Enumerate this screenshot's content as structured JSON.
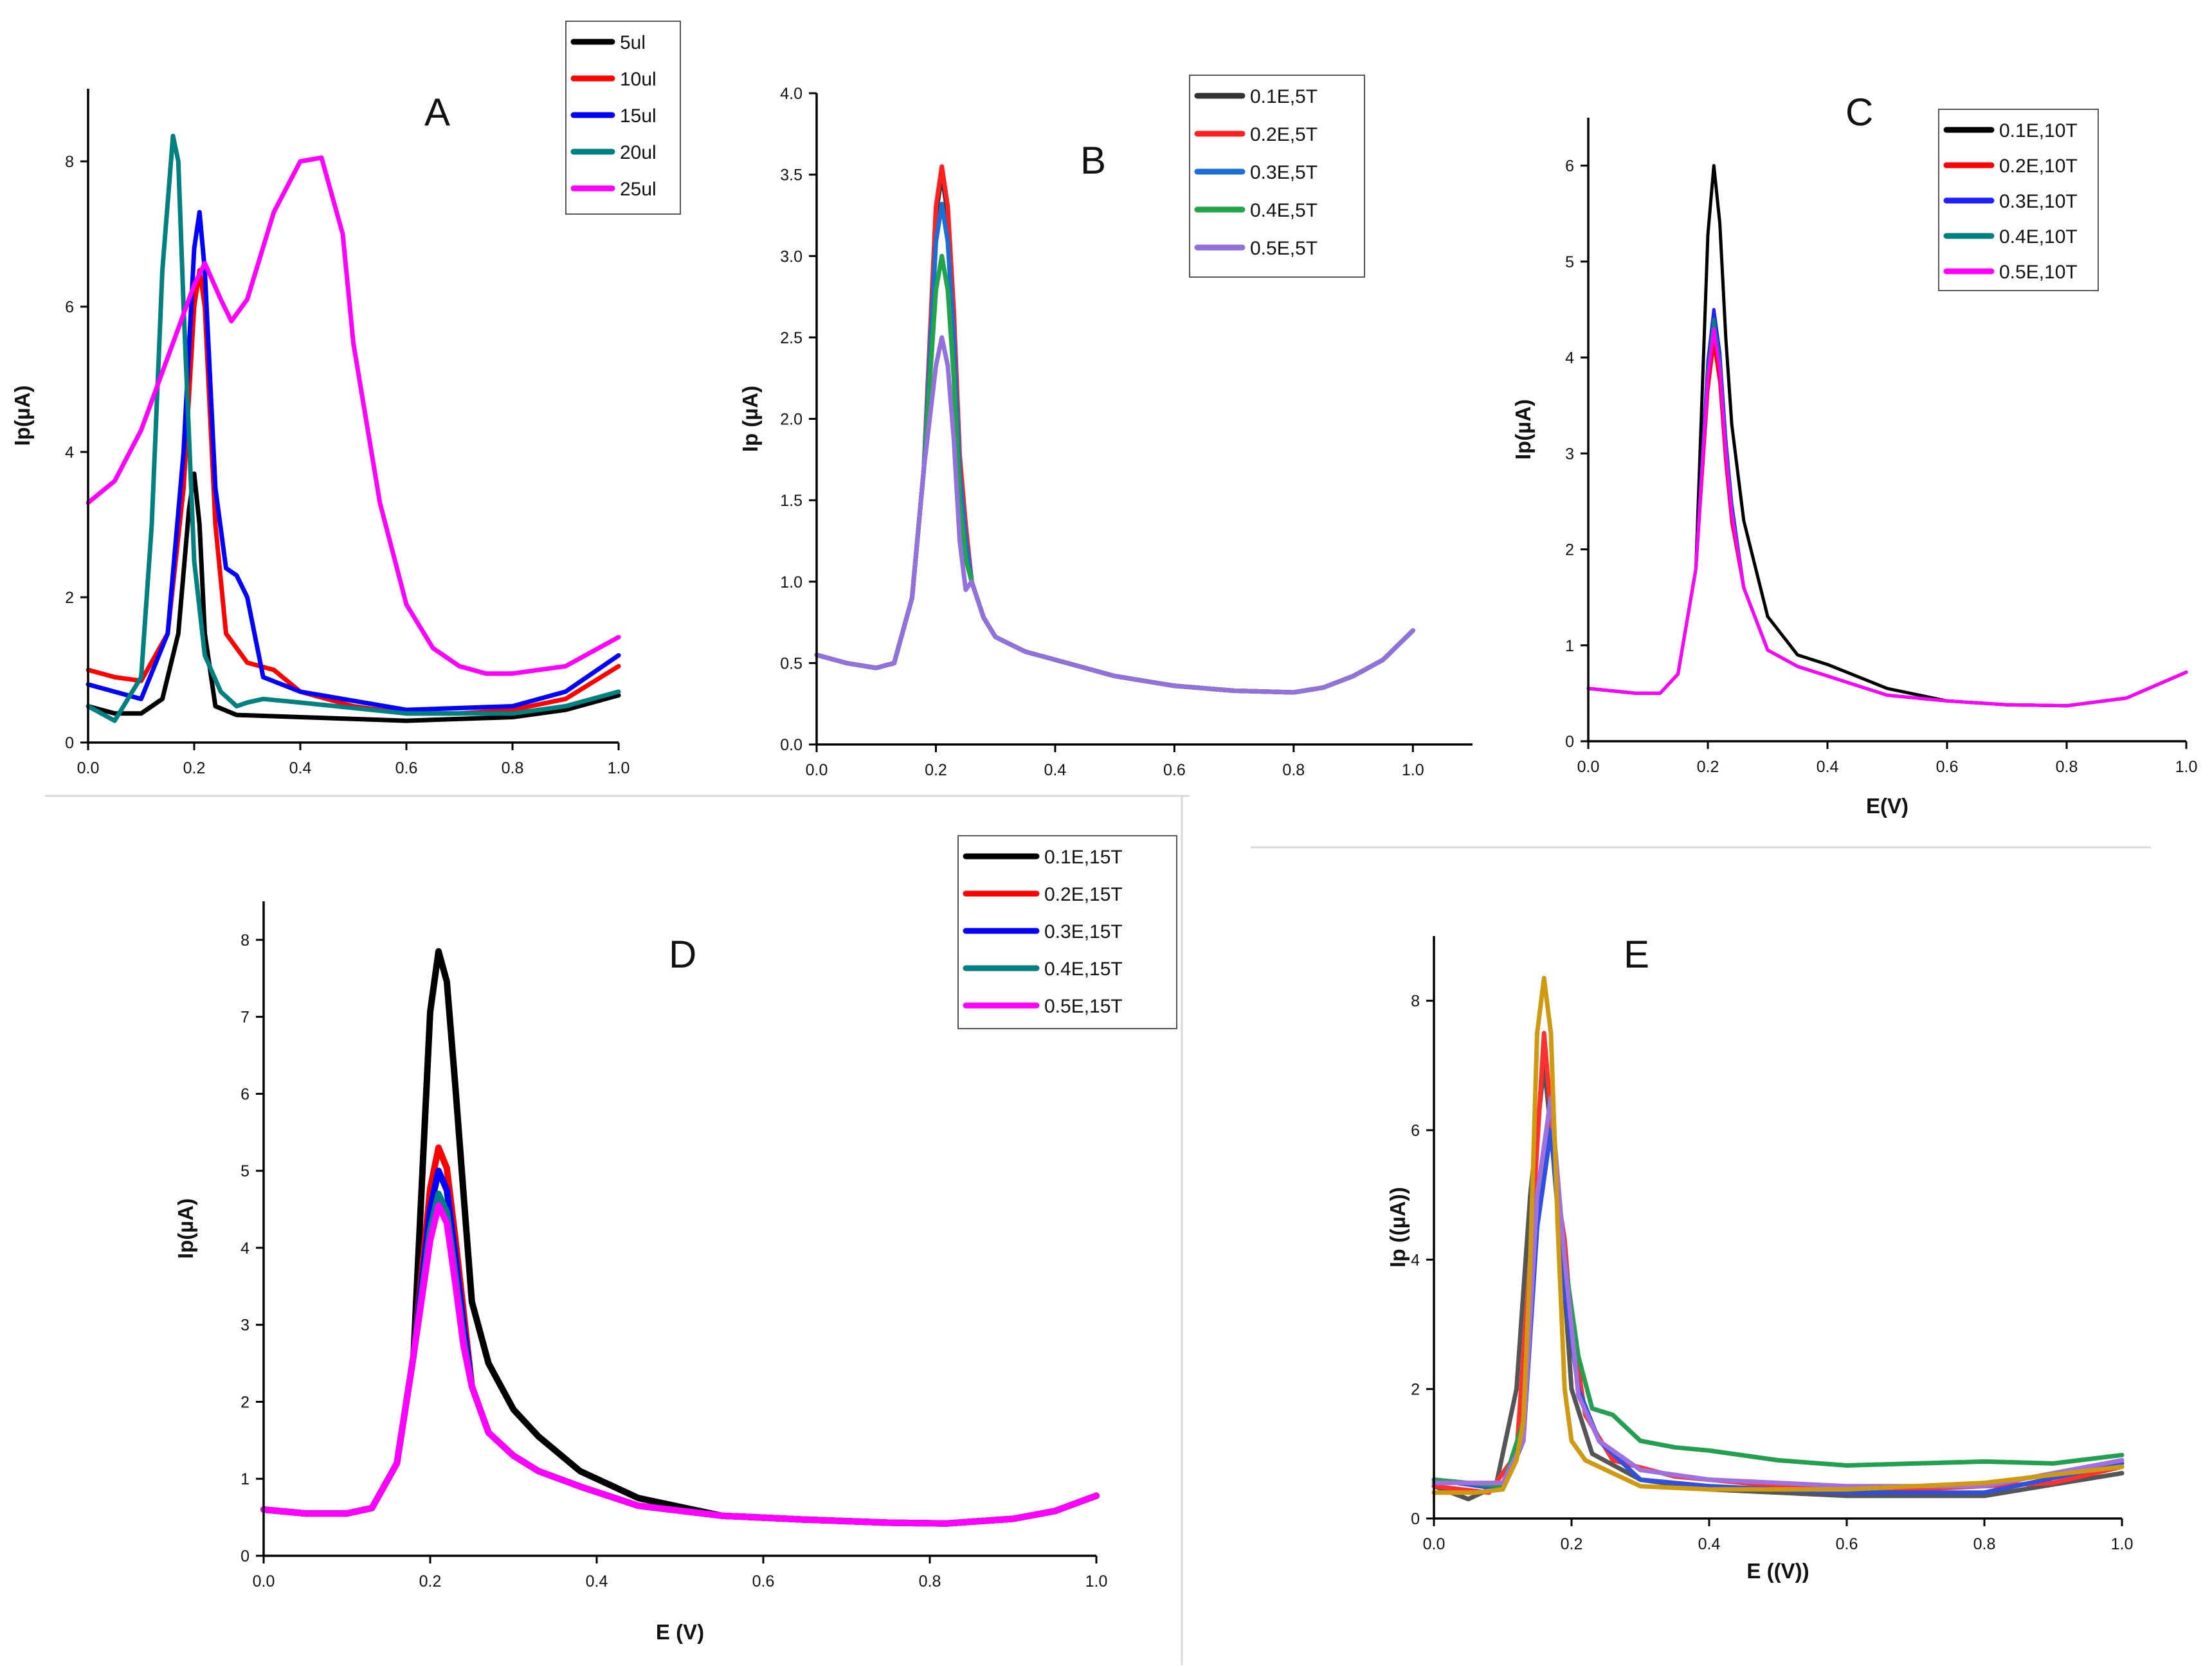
{
  "chart_data": [
    {
      "id": "A",
      "type": "line",
      "panel_label": "A",
      "xlabel": "",
      "ylabel": "Ip(µA)",
      "xlim": [
        0,
        1.0
      ],
      "ylim": [
        0,
        9
      ],
      "xticks": [
        "0.0",
        "0.2",
        "0.4",
        "0.6",
        "0.8",
        "1.0"
      ],
      "yticks": [
        "0",
        "2",
        "4",
        "6",
        "8"
      ],
      "legend": [
        "5ul",
        "10ul",
        "15ul",
        "20ul",
        "25ul"
      ],
      "series": [
        {
          "name": "5ul",
          "color": "#000000",
          "x": [
            0.0,
            0.05,
            0.1,
            0.14,
            0.17,
            0.19,
            0.2,
            0.21,
            0.22,
            0.24,
            0.28,
            0.4,
            0.6,
            0.8,
            0.9,
            1.0
          ],
          "y": [
            0.5,
            0.4,
            0.4,
            0.6,
            1.5,
            3.2,
            3.7,
            3.0,
            1.5,
            0.5,
            0.38,
            0.35,
            0.3,
            0.35,
            0.45,
            0.65
          ]
        },
        {
          "name": "10ul",
          "color": "#ff0000",
          "x": [
            0.0,
            0.05,
            0.1,
            0.15,
            0.18,
            0.2,
            0.21,
            0.22,
            0.24,
            0.26,
            0.3,
            0.35,
            0.4,
            0.5,
            0.6,
            0.7,
            0.8,
            0.9,
            1.0
          ],
          "y": [
            1.0,
            0.9,
            0.85,
            1.5,
            3.5,
            6.0,
            6.5,
            6.0,
            3.0,
            1.5,
            1.1,
            1.0,
            0.7,
            0.5,
            0.4,
            0.4,
            0.45,
            0.6,
            1.05
          ]
        },
        {
          "name": "15ul",
          "color": "#0000ff",
          "x": [
            0.0,
            0.1,
            0.15,
            0.18,
            0.2,
            0.21,
            0.22,
            0.24,
            0.26,
            0.28,
            0.3,
            0.33,
            0.4,
            0.6,
            0.8,
            0.9,
            1.0
          ],
          "y": [
            0.8,
            0.6,
            1.5,
            4.0,
            6.8,
            7.3,
            6.5,
            3.5,
            2.4,
            2.3,
            2.0,
            0.9,
            0.7,
            0.45,
            0.5,
            0.7,
            1.2
          ]
        },
        {
          "name": "20ul",
          "color": "#008080",
          "x": [
            0.0,
            0.05,
            0.1,
            0.12,
            0.14,
            0.16,
            0.17,
            0.18,
            0.2,
            0.22,
            0.25,
            0.28,
            0.3,
            0.33,
            0.4,
            0.6,
            0.8,
            0.9,
            1.0
          ],
          "y": [
            0.5,
            0.3,
            0.9,
            3.0,
            6.5,
            8.35,
            8.0,
            6.0,
            2.5,
            1.2,
            0.7,
            0.5,
            0.55,
            0.6,
            0.55,
            0.4,
            0.4,
            0.5,
            0.7
          ]
        },
        {
          "name": "25ul",
          "color": "#ff00ff",
          "x": [
            0.0,
            0.05,
            0.1,
            0.15,
            0.2,
            0.22,
            0.25,
            0.27,
            0.3,
            0.35,
            0.4,
            0.44,
            0.48,
            0.5,
            0.55,
            0.6,
            0.65,
            0.7,
            0.75,
            0.8,
            0.9,
            1.0
          ],
          "y": [
            3.3,
            3.6,
            4.3,
            5.3,
            6.3,
            6.6,
            6.1,
            5.8,
            6.1,
            7.3,
            8.0,
            8.05,
            7.0,
            5.5,
            3.3,
            1.9,
            1.3,
            1.05,
            0.95,
            0.95,
            1.05,
            1.45
          ]
        }
      ]
    },
    {
      "id": "B",
      "type": "line",
      "panel_label": "B",
      "xlabel": "",
      "ylabel": "Ip (µA)",
      "xlim": [
        0,
        1.1
      ],
      "ylim": [
        0,
        4.0
      ],
      "xticks": [
        "0.0",
        "0.2",
        "0.4",
        "0.6",
        "0.8",
        "1.0"
      ],
      "yticks": [
        "0.0",
        "0.5",
        "1.0",
        "1.5",
        "2.0",
        "2.5",
        "3.0",
        "3.5",
        "4.0"
      ],
      "legend": [
        "0.1E,5T",
        "0.2E,5T",
        "0.3E,5T",
        "0.4E,5T",
        "0.5E,5T"
      ],
      "series": [
        {
          "name": "0.1E,5T",
          "color": "#333333",
          "peak": 3.5
        },
        {
          "name": "0.2E,5T",
          "color": "#ff2020",
          "peak": 3.55
        },
        {
          "name": "0.3E,5T",
          "color": "#1a6fd6",
          "peak": 3.32
        },
        {
          "name": "0.4E,5T",
          "color": "#22a44a",
          "peak": 3.0
        },
        {
          "name": "0.5E,5T",
          "color": "#9370db",
          "peak": 2.5
        }
      ]
    },
    {
      "id": "C",
      "type": "line",
      "panel_label": "C",
      "xlabel": "E(V)",
      "ylabel": "Ip(µA)",
      "xlim": [
        0,
        1.0
      ],
      "ylim": [
        0,
        6.5
      ],
      "xticks": [
        "0.0",
        "0.2",
        "0.4",
        "0.6",
        "0.8",
        "1.0"
      ],
      "yticks": [
        "0",
        "1",
        "2",
        "3",
        "4",
        "5",
        "6"
      ],
      "legend": [
        "0.1E,10T",
        "0.2E,10T",
        "0.3E,10T",
        "0.4E,10T",
        "0.5E,10T"
      ],
      "series": [
        {
          "name": "0.1E,10T",
          "color": "#000000",
          "peak": 6.0
        },
        {
          "name": "0.2E,10T",
          "color": "#ff0000",
          "peak": 4.15
        },
        {
          "name": "0.3E,10T",
          "color": "#2020ff",
          "peak": 4.5
        },
        {
          "name": "0.4E,10T",
          "color": "#008080",
          "peak": 4.4
        },
        {
          "name": "0.5E,10T",
          "color": "#ff00ff",
          "peak": 4.3
        }
      ]
    },
    {
      "id": "D",
      "type": "line",
      "panel_label": "D",
      "xlabel": "E (V)",
      "ylabel": "Ip(µA)",
      "xlim": [
        0,
        1.0
      ],
      "ylim": [
        0,
        8.5
      ],
      "xticks": [
        "0.0",
        "0.2",
        "0.4",
        "0.6",
        "0.8",
        "1.0"
      ],
      "yticks": [
        "0",
        "1",
        "2",
        "3",
        "4",
        "5",
        "6",
        "7",
        "8"
      ],
      "legend": [
        "0.1E,15T",
        "0.2E,15T",
        "0.3E,15T",
        "0.4E,15T",
        "0.5E,15T"
      ],
      "series": [
        {
          "name": "0.1E,15T",
          "color": "#000000",
          "peak": 7.85
        },
        {
          "name": "0.2E,15T",
          "color": "#ff0000",
          "peak": 5.3
        },
        {
          "name": "0.3E,15T",
          "color": "#0000ff",
          "peak": 5.0
        },
        {
          "name": "0.4E,15T",
          "color": "#008080",
          "peak": 4.7
        },
        {
          "name": "0.5E,15T",
          "color": "#ff00ff",
          "peak": 4.55
        }
      ]
    },
    {
      "id": "E",
      "type": "line",
      "panel_label": "E",
      "xlabel": "E ((V))",
      "ylabel": "Ip ((µA))",
      "xlim": [
        0,
        1.0
      ],
      "ylim": [
        0,
        9
      ],
      "xticks": [
        "0.0",
        "0.2",
        "0.4",
        "0.6",
        "0.8",
        "1.0"
      ],
      "yticks": [
        "0",
        "2",
        "4",
        "6",
        "8"
      ],
      "legend": [],
      "series": [
        {
          "name": "gray",
          "color": "#555555",
          "x": [
            0.0,
            0.05,
            0.09,
            0.12,
            0.14,
            0.16,
            0.18,
            0.2,
            0.23,
            0.3,
            0.4,
            0.6,
            0.8,
            1.0
          ],
          "y": [
            0.5,
            0.3,
            0.5,
            2.0,
            5.0,
            7.0,
            5.0,
            2.0,
            1.0,
            0.6,
            0.45,
            0.35,
            0.35,
            0.7
          ]
        },
        {
          "name": "red",
          "color": "#ff3030",
          "x": [
            0.0,
            0.08,
            0.12,
            0.14,
            0.16,
            0.18,
            0.19,
            0.2,
            0.22,
            0.26,
            0.35,
            0.5,
            0.7,
            0.9,
            1.0
          ],
          "y": [
            0.5,
            0.4,
            1.0,
            4.0,
            7.5,
            5.0,
            4.3,
            3.0,
            1.6,
            0.9,
            0.65,
            0.5,
            0.45,
            0.55,
            0.8
          ]
        },
        {
          "name": "blue",
          "color": "#3050e0",
          "x": [
            0.0,
            0.1,
            0.13,
            0.15,
            0.17,
            0.19,
            0.21,
            0.24,
            0.3,
            0.4,
            0.6,
            0.8,
            1.0
          ],
          "y": [
            0.6,
            0.45,
            1.2,
            4.5,
            6.0,
            3.5,
            2.0,
            1.2,
            0.6,
            0.5,
            0.4,
            0.4,
            0.85
          ]
        },
        {
          "name": "green",
          "color": "#22a050",
          "x": [
            0.0,
            0.1,
            0.13,
            0.15,
            0.17,
            0.19,
            0.21,
            0.23,
            0.26,
            0.3,
            0.35,
            0.4,
            0.5,
            0.6,
            0.7,
            0.8,
            0.9,
            1.0
          ],
          "y": [
            0.6,
            0.5,
            1.5,
            5.0,
            6.5,
            4.0,
            2.5,
            1.7,
            1.6,
            1.2,
            1.1,
            1.05,
            0.9,
            0.82,
            0.85,
            0.88,
            0.85,
            0.98
          ]
        },
        {
          "name": "violet",
          "color": "#a070e0",
          "x": [
            0.0,
            0.1,
            0.13,
            0.15,
            0.17,
            0.19,
            0.21,
            0.24,
            0.3,
            0.4,
            0.6,
            0.8,
            1.0
          ],
          "y": [
            0.55,
            0.55,
            1.2,
            5.0,
            6.5,
            4.0,
            1.9,
            1.2,
            0.75,
            0.6,
            0.5,
            0.5,
            0.9
          ]
        },
        {
          "name": "gold",
          "color": "#d09a10",
          "x": [
            0.0,
            0.06,
            0.1,
            0.12,
            0.13,
            0.14,
            0.15,
            0.16,
            0.17,
            0.18,
            0.19,
            0.2,
            0.22,
            0.3,
            0.4,
            0.6,
            0.8,
            1.0
          ],
          "y": [
            0.4,
            0.4,
            0.45,
            0.9,
            1.5,
            4.0,
            7.5,
            8.35,
            7.5,
            4.5,
            2.0,
            1.2,
            0.9,
            0.5,
            0.45,
            0.45,
            0.55,
            0.8
          ]
        }
      ]
    }
  ]
}
